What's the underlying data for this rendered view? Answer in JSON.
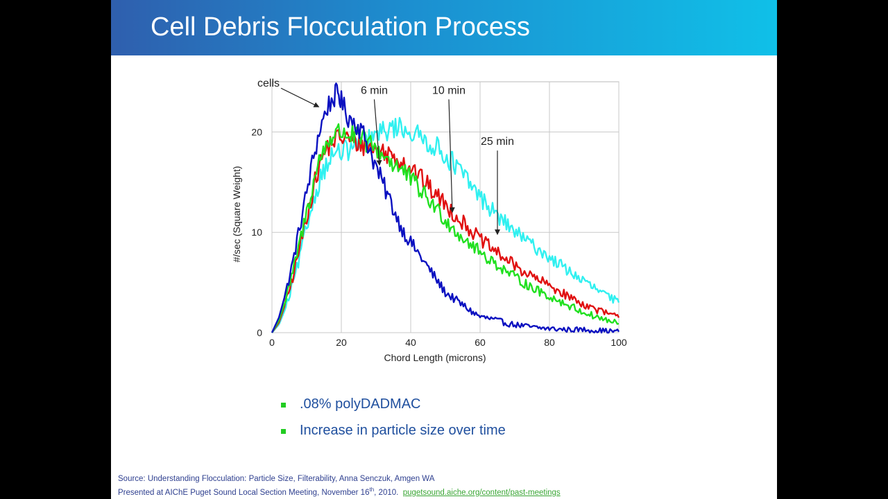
{
  "slide": {
    "title": "Cell Debris Flocculation Process"
  },
  "chart_data": {
    "type": "line",
    "xlabel": "Chord Length (microns)",
    "ylabel": "#/sec (Square Weight)",
    "xlim": [
      0,
      100
    ],
    "ylim": [
      0,
      25
    ],
    "xticks": [
      "0",
      "20",
      "40",
      "60",
      "80",
      "100"
    ],
    "yticks": [
      "0",
      "10",
      "20"
    ],
    "grid": true,
    "series": [
      {
        "color": "#0a10c0",
        "x": [
          0,
          2,
          4,
          6,
          8,
          10,
          12,
          14,
          16,
          18,
          19,
          20,
          22,
          24,
          26,
          28,
          30,
          32,
          34,
          36,
          38,
          40,
          42,
          44,
          46,
          48,
          50,
          52,
          54,
          56,
          58,
          60,
          64,
          68,
          72,
          76,
          80,
          85,
          90,
          95,
          100
        ],
        "y": [
          0,
          1.5,
          4,
          7,
          10.5,
          14,
          17.5,
          20.5,
          22.5,
          23.5,
          24,
          23,
          21.5,
          21,
          20,
          18.5,
          16.5,
          14.8,
          13.2,
          11.5,
          10,
          9,
          8,
          7,
          6,
          5,
          4,
          3.5,
          3,
          2.5,
          2,
          1.6,
          1.3,
          0.9,
          0.7,
          0.5,
          0.4,
          0.3,
          0.3,
          0.2,
          0.1
        ]
      },
      {
        "color": "#e01010",
        "x": [
          0,
          2,
          4,
          6,
          8,
          10,
          12,
          14,
          16,
          18,
          20,
          22,
          24,
          26,
          28,
          30,
          32,
          34,
          36,
          38,
          40,
          42,
          44,
          46,
          48,
          50,
          52,
          54,
          56,
          58,
          60,
          64,
          68,
          72,
          76,
          80,
          85,
          90,
          95,
          100
        ],
        "y": [
          0,
          1,
          3,
          5.5,
          8.5,
          11.5,
          14.5,
          17,
          18.5,
          19.2,
          19.5,
          19.3,
          19,
          18.8,
          18.5,
          18.2,
          18,
          17.8,
          17.5,
          17,
          16.5,
          15.8,
          15,
          14.2,
          13.5,
          12.8,
          12,
          11.3,
          10.7,
          10,
          9.3,
          8.2,
          7.2,
          6.2,
          5.4,
          4.7,
          3.7,
          2.8,
          2.1,
          1.5
        ]
      },
      {
        "color": "#20e020",
        "x": [
          0,
          2,
          4,
          6,
          8,
          10,
          12,
          14,
          16,
          18,
          20,
          22,
          24,
          26,
          28,
          30,
          32,
          34,
          36,
          38,
          40,
          42,
          44,
          46,
          48,
          50,
          52,
          54,
          56,
          58,
          60,
          64,
          68,
          72,
          76,
          80,
          85,
          90,
          95,
          100
        ],
        "y": [
          0,
          1.2,
          3.3,
          6,
          9,
          12,
          15,
          17.5,
          19,
          19.8,
          20,
          19.8,
          19.5,
          19.2,
          18.8,
          18.3,
          17.8,
          17.2,
          16.6,
          16,
          15.3,
          14.5,
          13.7,
          12.9,
          12.1,
          11.3,
          10.5,
          9.8,
          9.2,
          8.6,
          8,
          7,
          6,
          5.1,
          4.3,
          3.6,
          2.8,
          2,
          1.4,
          0.9
        ]
      },
      {
        "color": "#30f0f0",
        "x": [
          0,
          2,
          4,
          6,
          8,
          10,
          12,
          14,
          16,
          18,
          20,
          22,
          24,
          26,
          28,
          30,
          32,
          34,
          36,
          38,
          40,
          42,
          44,
          46,
          48,
          50,
          52,
          54,
          56,
          58,
          60,
          64,
          68,
          72,
          76,
          80,
          85,
          90,
          95,
          100
        ],
        "y": [
          0,
          0.8,
          2.5,
          4.8,
          7.5,
          10.5,
          13.2,
          15.5,
          17,
          17.8,
          18,
          18.2,
          18.5,
          18.8,
          19.2,
          19.6,
          20,
          20.3,
          20.5,
          20.4,
          20,
          19.6,
          19.2,
          18.8,
          18.3,
          17.7,
          17,
          16.2,
          15.3,
          14.4,
          13.5,
          12,
          10.7,
          9.5,
          8.5,
          7.5,
          6.3,
          5.1,
          4,
          3
        ]
      }
    ],
    "annotations": [
      {
        "text": "cells",
        "x": -1,
        "y": 24.5,
        "ax": 13.5,
        "ay": 22.5
      },
      {
        "text": "6 min",
        "x": 29.5,
        "y": 23.8,
        "ax": 31,
        "ay": 16.7
      },
      {
        "text": "10 min",
        "x": 51,
        "y": 23.8,
        "ax": 52,
        "ay": 12
      },
      {
        "text": "25 min",
        "x": 65,
        "y": 18.7,
        "ax": 65,
        "ay": 9.8
      }
    ]
  },
  "bullets": [
    {
      "text": ".08% polyDADMAC",
      "color": "#22cc22"
    },
    {
      "text": "Increase in particle size over time",
      "color": "#22cc22"
    }
  ],
  "source": {
    "line1": "Source: Understanding  Flocculation: Particle Size, Filterability, Anna Senczuk, Amgen WA",
    "line2_prefix": "Presented at AIChE Puget Sound Local Section Meeting, November  16",
    "line2_sup": "th",
    "line2_suffix": ", 2010.",
    "link": "pugetsound.aiche.org/content/past-meetings"
  }
}
